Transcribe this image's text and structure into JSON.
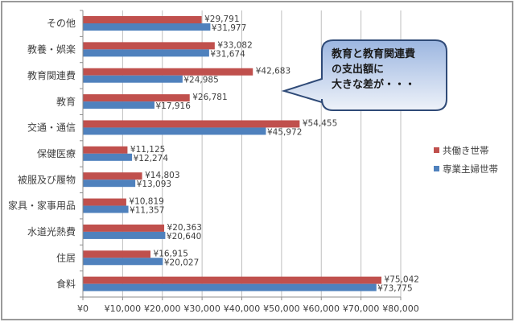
{
  "chart_data": {
    "type": "bar",
    "orientation": "horizontal",
    "title": "",
    "xlabel": "",
    "ylabel": "",
    "xlim": [
      0,
      80000
    ],
    "x_ticks": [
      "¥0",
      "¥10,000",
      "¥20,000",
      "¥30,000",
      "¥40,000",
      "¥50,000",
      "¥60,000",
      "¥70,000",
      "¥80,000"
    ],
    "grid": "vertical",
    "legend_position": "right",
    "categories": [
      "その他",
      "教養・娯楽",
      "教育関連費",
      "教育",
      "交通・通信",
      "保健医療",
      "被服及び履物",
      "家具・家事用品",
      "水道光熱費",
      "住居",
      "食料"
    ],
    "series": [
      {
        "name": "共働き世帯",
        "color": "#c0504d",
        "values": [
          29791,
          33082,
          42683,
          26781,
          54455,
          11125,
          14803,
          10819,
          20363,
          16915,
          75042
        ],
        "labels": [
          "¥29,791",
          "¥33,082",
          "¥42,683",
          "¥26,781",
          "¥54,455",
          "¥11,125",
          "¥14,803",
          "¥10,819",
          "¥20,363",
          "¥16,915",
          "¥75,042"
        ]
      },
      {
        "name": "専業主婦世帯",
        "color": "#4f81bd",
        "values": [
          31977,
          31674,
          24985,
          17916,
          45972,
          12274,
          13093,
          11357,
          20640,
          20027,
          73775
        ],
        "labels": [
          "¥31,977",
          "¥31,674",
          "¥24,985",
          "¥17,916",
          "¥45,972",
          "¥12,274",
          "¥13,093",
          "¥11,357",
          "¥20,640",
          "¥20,027",
          "¥73,775"
        ]
      }
    ],
    "annotations": [
      {
        "type": "callout",
        "lines": [
          "教育と教育関連費",
          "の支出額に",
          "大きな差が・・・"
        ],
        "points_to": "教育関連費"
      }
    ]
  },
  "callout": {
    "line1": "教育と教育関連費",
    "line2": "の支出額に",
    "line3": "大きな差が・・・"
  },
  "legend": {
    "item1": "共働き世帯",
    "item2": "専業主婦世帯"
  }
}
